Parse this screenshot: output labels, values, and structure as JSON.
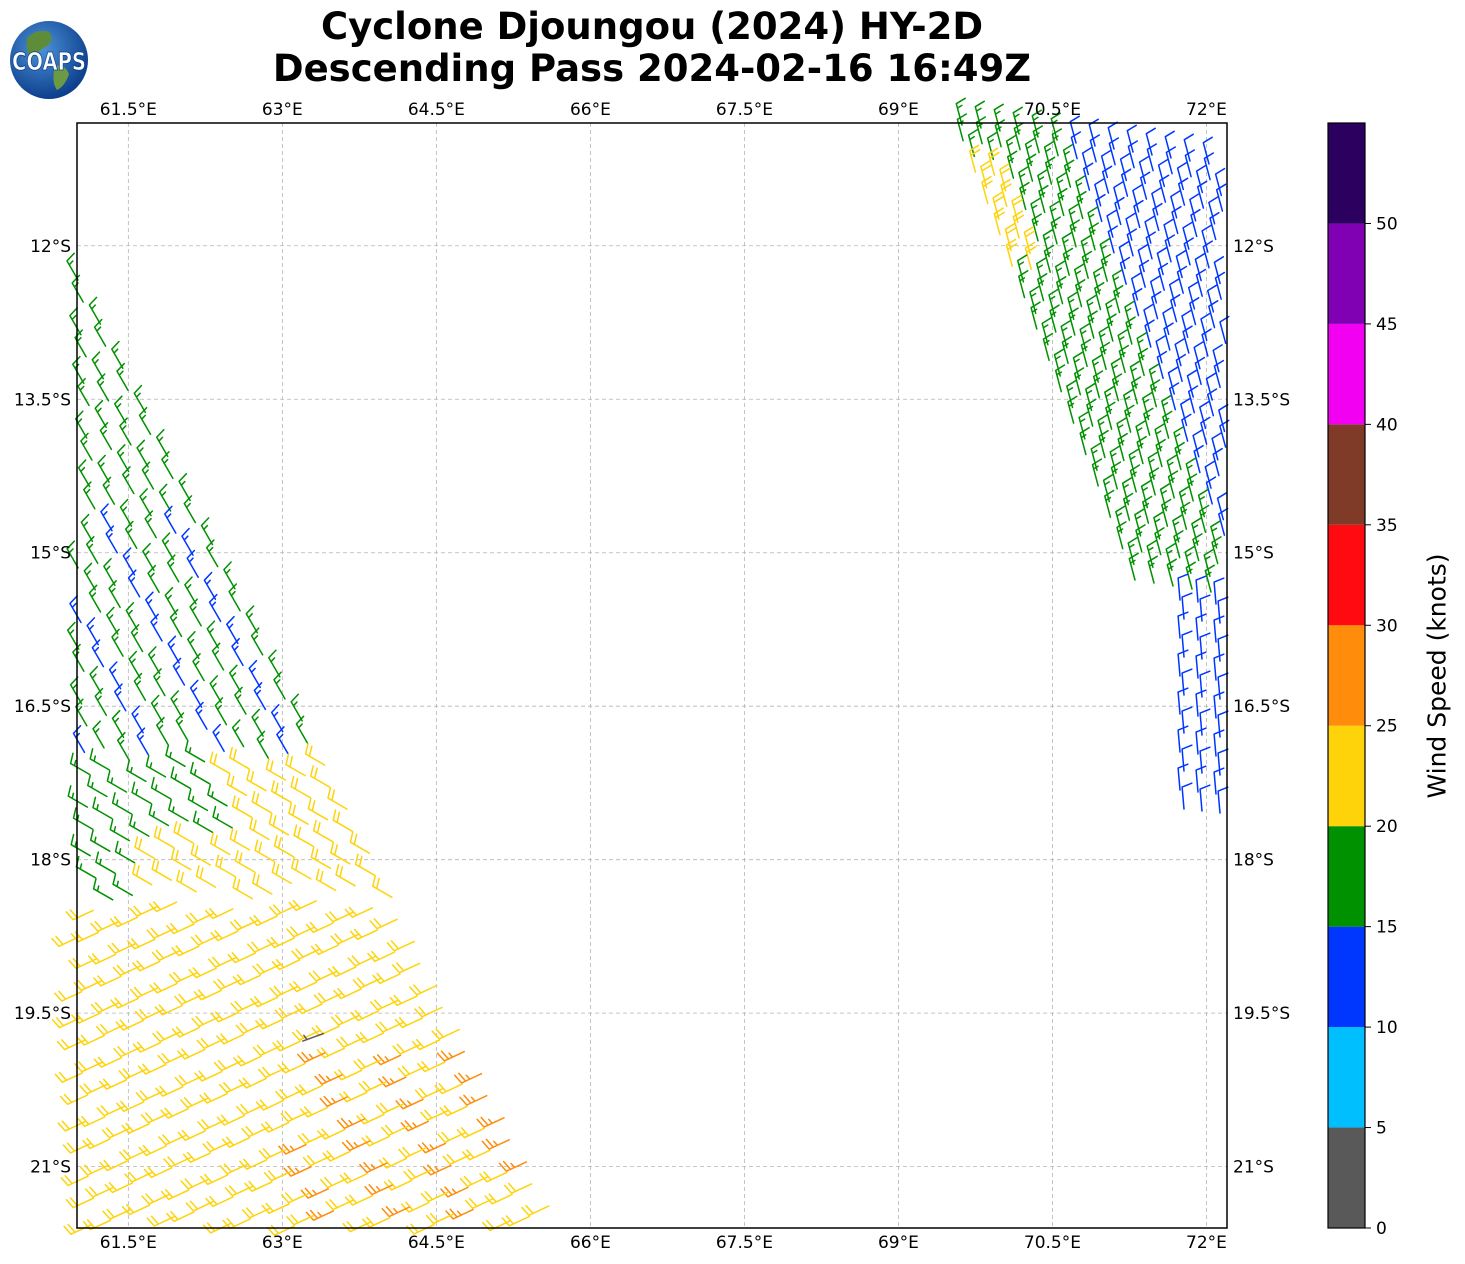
{
  "header": {
    "title_line1": "Cyclone Djoungou (2024) HY-2D",
    "title_line2": "Descending Pass 2024-02-16 16:49Z"
  },
  "logo": {
    "text": "COAPS",
    "icon": "globe-icon"
  },
  "map": {
    "lon_ticks": [
      "61.5°E",
      "63°E",
      "64.5°E",
      "66°E",
      "67.5°E",
      "69°E",
      "70.5°E",
      "72°E"
    ],
    "lat_ticks": [
      "12°S",
      "13.5°S",
      "15°S",
      "16.5°S",
      "18°S",
      "19.5°S",
      "21°S"
    ],
    "lon_range": [
      61.0,
      72.2
    ],
    "lat_range": [
      -10.8,
      -21.6
    ],
    "gridlines": true
  },
  "colorbar": {
    "label": "Wind Speed (knots)",
    "ticks": [
      "0",
      "5",
      "10",
      "15",
      "20",
      "25",
      "30",
      "35",
      "40",
      "45",
      "50"
    ],
    "bins": [
      {
        "min": 0,
        "max": 5,
        "color": "#595959"
      },
      {
        "min": 5,
        "max": 10,
        "color": "#00bfff"
      },
      {
        "min": 10,
        "max": 15,
        "color": "#0037ff"
      },
      {
        "min": 15,
        "max": 20,
        "color": "#009100"
      },
      {
        "min": 20,
        "max": 25,
        "color": "#ffd30a"
      },
      {
        "min": 25,
        "max": 30,
        "color": "#ff8c0a"
      },
      {
        "min": 30,
        "max": 35,
        "color": "#ff0a10"
      },
      {
        "min": 35,
        "max": 40,
        "color": "#7f3a28"
      },
      {
        "min": 40,
        "max": 45,
        "color": "#f200f2"
      },
      {
        "min": 45,
        "max": 50,
        "color": "#8000b3"
      },
      {
        "min": 50,
        "max": 55,
        "color": "#2b005e"
      }
    ]
  }
}
